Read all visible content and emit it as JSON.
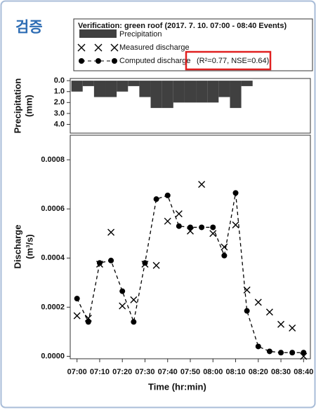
{
  "header": "검증",
  "chart_data": [
    {
      "type": "bar",
      "ylabel": [
        "Precipitation",
        "(mm)"
      ],
      "series": [
        {
          "name": "Precipitation",
          "color": "#404040",
          "x": [
            "07:00",
            "07:05",
            "07:10",
            "07:15",
            "07:20",
            "07:25",
            "07:30",
            "07:35",
            "07:40",
            "07:45",
            "07:50",
            "07:55",
            "08:00",
            "08:05",
            "08:10",
            "08:15"
          ],
          "values": [
            1.0,
            0.5,
            1.5,
            1.5,
            1.0,
            0.5,
            1.5,
            2.5,
            2.5,
            2.0,
            2.0,
            2.0,
            2.0,
            1.5,
            2.5,
            0.5
          ]
        }
      ],
      "xlim": [
        "06:57",
        "08:43"
      ],
      "ylim": [
        -0.2,
        4.8
      ],
      "y_inverted": true,
      "yticks": [
        {
          "value": 0,
          "label": "0.0"
        },
        {
          "value": 1,
          "label": "1.0"
        },
        {
          "value": 2,
          "label": "2.0"
        },
        {
          "value": 3,
          "label": "3.0"
        },
        {
          "value": 4,
          "label": "4.0"
        }
      ]
    },
    {
      "type": "line",
      "title": "Verification: green roof  (2017. 7. 10.  07:00 - 08:40 Events)",
      "annotation": "(R²=0.77, NSE=0.64)",
      "xlabel": "Time (hr:min)",
      "ylabel": [
        "Discharge",
        "(m³/s)"
      ],
      "x": [
        "07:00",
        "07:05",
        "07:10",
        "07:15",
        "07:20",
        "07:25",
        "07:30",
        "07:35",
        "07:40",
        "07:45",
        "07:50",
        "07:55",
        "08:00",
        "08:05",
        "08:10",
        "08:15",
        "08:20",
        "08:25",
        "08:30",
        "08:35",
        "08:40"
      ],
      "series": [
        {
          "name": "Measured discharge",
          "color": "#000000",
          "marker": "x",
          "linestyle": "none",
          "values": [
            0.000165,
            0.000155,
            0.000375,
            0.000505,
            0.000205,
            0.00023,
            0.000375,
            0.00037,
            0.00055,
            0.00058,
            0.00051,
            0.0007,
            0.0005,
            0.000445,
            0.000535,
            0.00027,
            0.00022,
            0.00018,
            0.00013,
            0.000115,
            0.0
          ]
        },
        {
          "name": "Computed discharge",
          "color": "#000000",
          "marker": "o",
          "linestyle": "dashed",
          "values": [
            0.000235,
            0.00014,
            0.00038,
            0.00039,
            0.000265,
            0.00014,
            0.00038,
            0.00064,
            0.000655,
            0.00053,
            0.000525,
            0.000525,
            0.000525,
            0.00041,
            0.000665,
            0.000185,
            4e-05,
            2e-05,
            1.5e-05,
            1.5e-05,
            1.5e-05
          ]
        }
      ],
      "xlim": [
        "06:57",
        "08:43"
      ],
      "xticks": [
        "07:00",
        "07:10",
        "07:20",
        "07:30",
        "07:40",
        "07:50",
        "08:00",
        "08:10",
        "08:20",
        "08:30",
        "08:40"
      ],
      "ylim": [
        -1e-05,
        0.0009
      ],
      "yticks": [
        {
          "value": 0,
          "label": "0.0000"
        },
        {
          "value": 0.0002,
          "label": "0.0002"
        },
        {
          "value": 0.0004,
          "label": "0.0004"
        },
        {
          "value": 0.0006,
          "label": "0.0006"
        },
        {
          "value": 0.0008,
          "label": "0.0008"
        }
      ]
    }
  ]
}
